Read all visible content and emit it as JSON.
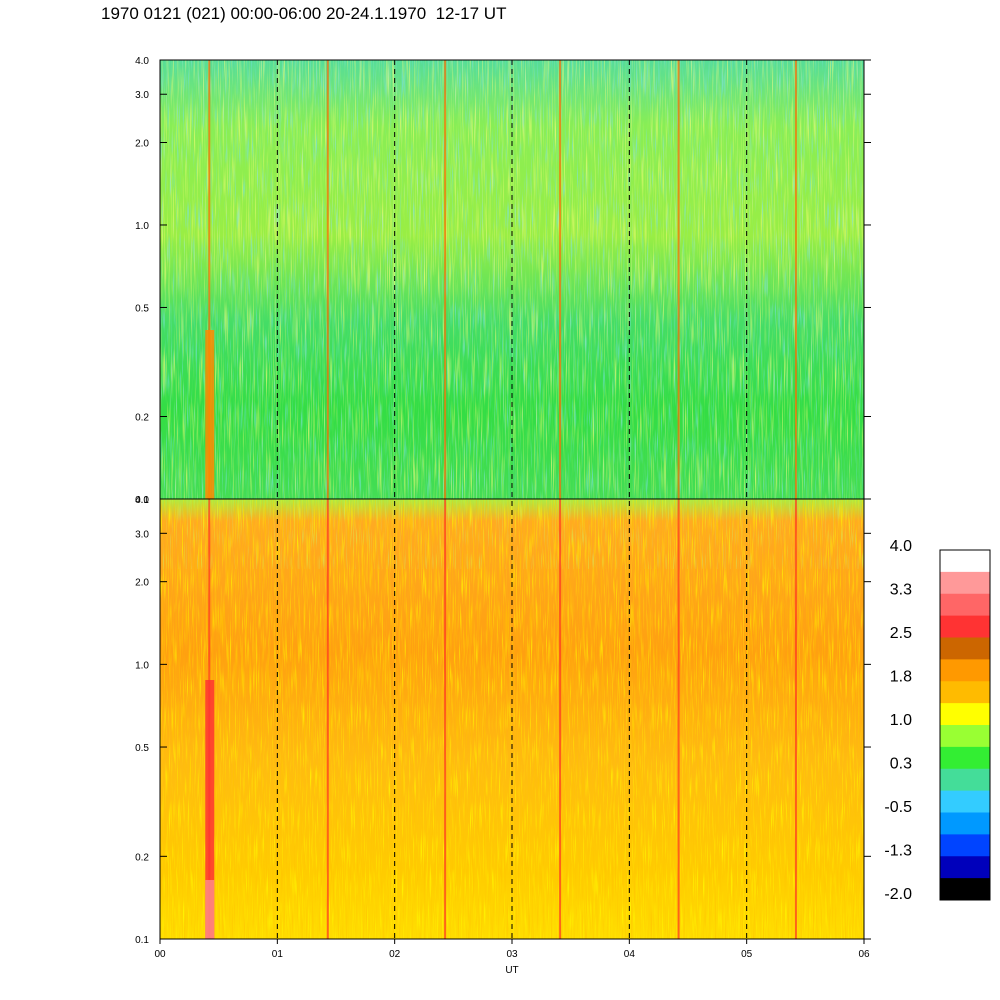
{
  "title": "1970 0121 (021) 00:00-06:00 20-24.1.1970  12-17 UT",
  "chart_data": {
    "type": "heatmap",
    "title": "1970 0121 (021) 00:00-06:00 20-24.1.1970  12-17 UT",
    "xlabel": "UT",
    "x_range": [
      0,
      6
    ],
    "x_ticks": [
      "00",
      "01",
      "02",
      "03",
      "04",
      "05",
      "06"
    ],
    "y_scale": "log",
    "y_range": [
      0.1,
      4.0
    ],
    "y_ticks": [
      {
        "label": "0.1",
        "value": 0.1
      },
      {
        "label": "0.2",
        "value": 0.2
      },
      {
        "label": "0.5",
        "value": 0.5
      },
      {
        "label": "1.0",
        "value": 1.0
      },
      {
        "label": "2.0",
        "value": 2.0
      },
      {
        "label": "3.0",
        "value": 3.0
      },
      {
        "label": "4.0",
        "value": 4.0
      }
    ],
    "panels": [
      {
        "id": "top",
        "dominant_levels": [
          "0.3",
          "1.0"
        ],
        "note": "green/yellow with blue-green bands"
      },
      {
        "id": "bottom",
        "dominant_levels": [
          "1.0",
          "1.8",
          "2.5"
        ],
        "note": "yellow/orange"
      }
    ],
    "vertical_markers": [
      1,
      2,
      3,
      4,
      5
    ],
    "intense_stripes_x": [
      0.42,
      1.43,
      2.43,
      3.41,
      4.42,
      5.42
    ],
    "colorbar": {
      "labels": [
        "4.0",
        "3.3",
        "2.5",
        "1.8",
        "1.0",
        "0.3",
        "-0.5",
        "-1.3",
        "-2.0"
      ],
      "colors": [
        "#ffffff",
        "#ff9999",
        "#ff6666",
        "#ff3333",
        "#cc6600",
        "#ff9900",
        "#ffbb00",
        "#ffff00",
        "#99ff33",
        "#33ee33",
        "#44dd99",
        "#33ccff",
        "#0099ff",
        "#0044ff",
        "#0000bb",
        "#000000"
      ]
    }
  }
}
